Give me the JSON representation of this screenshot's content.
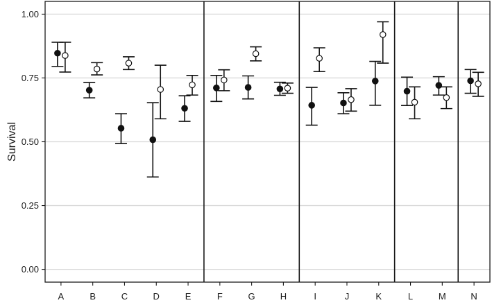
{
  "chart_data": {
    "type": "scatter",
    "subtype": "point-with-error-bars",
    "title": "",
    "xlabel": "",
    "ylabel": "Survival",
    "ylim": [
      -0.05,
      1.05
    ],
    "yticks": [
      "0.00",
      "0.25",
      "0.50",
      "0.75",
      "1.00"
    ],
    "grid": {
      "horizontal": true,
      "vertical": false
    },
    "legend": "none",
    "categories": [
      "A",
      "B",
      "C",
      "D",
      "E",
      "F",
      "G",
      "H",
      "I",
      "J",
      "K",
      "L",
      "M",
      "N"
    ],
    "panel_dividers_after": [
      "E",
      "H",
      "K",
      "M"
    ],
    "series": [
      {
        "marker": "filled-circle",
        "points": [
          {
            "x": "A",
            "y": 0.847,
            "low": 0.795,
            "high": 0.89
          },
          {
            "x": "B",
            "y": 0.702,
            "low": 0.672,
            "high": 0.732
          },
          {
            "x": "C",
            "y": 0.553,
            "low": 0.493,
            "high": 0.61
          },
          {
            "x": "D",
            "y": 0.508,
            "low": 0.362,
            "high": 0.653
          },
          {
            "x": "E",
            "y": 0.631,
            "low": 0.58,
            "high": 0.68
          },
          {
            "x": "F",
            "y": 0.711,
            "low": 0.658,
            "high": 0.76
          },
          {
            "x": "G",
            "y": 0.713,
            "low": 0.668,
            "high": 0.758
          },
          {
            "x": "H",
            "y": 0.707,
            "low": 0.682,
            "high": 0.733
          },
          {
            "x": "I",
            "y": 0.643,
            "low": 0.565,
            "high": 0.713
          },
          {
            "x": "J",
            "y": 0.652,
            "low": 0.61,
            "high": 0.692
          },
          {
            "x": "K",
            "y": 0.738,
            "low": 0.643,
            "high": 0.815
          },
          {
            "x": "L",
            "y": 0.698,
            "low": 0.642,
            "high": 0.753
          },
          {
            "x": "M",
            "y": 0.721,
            "low": 0.683,
            "high": 0.755
          },
          {
            "x": "N",
            "y": 0.739,
            "low": 0.69,
            "high": 0.783
          }
        ]
      },
      {
        "marker": "open-circle",
        "points": [
          {
            "x": "A",
            "y": 0.838,
            "low": 0.773,
            "high": 0.89
          },
          {
            "x": "B",
            "y": 0.785,
            "low": 0.762,
            "high": 0.81
          },
          {
            "x": "C",
            "y": 0.808,
            "low": 0.783,
            "high": 0.833
          },
          {
            "x": "D",
            "y": 0.705,
            "low": 0.59,
            "high": 0.8
          },
          {
            "x": "E",
            "y": 0.723,
            "low": 0.683,
            "high": 0.76
          },
          {
            "x": "F",
            "y": 0.742,
            "low": 0.7,
            "high": 0.782
          },
          {
            "x": "G",
            "y": 0.845,
            "low": 0.817,
            "high": 0.872
          },
          {
            "x": "H",
            "y": 0.71,
            "low": 0.69,
            "high": 0.73
          },
          {
            "x": "I",
            "y": 0.827,
            "low": 0.775,
            "high": 0.868
          },
          {
            "x": "J",
            "y": 0.665,
            "low": 0.62,
            "high": 0.708
          },
          {
            "x": "K",
            "y": 0.92,
            "low": 0.808,
            "high": 0.97
          },
          {
            "x": "L",
            "y": 0.655,
            "low": 0.59,
            "high": 0.715
          },
          {
            "x": "M",
            "y": 0.673,
            "low": 0.63,
            "high": 0.715
          },
          {
            "x": "N",
            "y": 0.727,
            "low": 0.678,
            "high": 0.772
          }
        ]
      }
    ],
    "colors": {
      "frame": "#1a1a1a",
      "grid": "#d9d9d9",
      "point": "#111111",
      "open_fill": "#ffffff"
    }
  }
}
